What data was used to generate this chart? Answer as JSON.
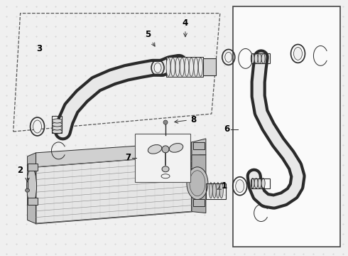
{
  "bg_color": "#f0f0f0",
  "panel_bg": "#f5f5f5",
  "lc": "#2a2a2a",
  "lc_light": "#888888",
  "white": "#ffffff",
  "gray1": "#e0e0e0",
  "gray2": "#c8c8c8",
  "gray3": "#b0b0b0",
  "dot_color": "#cccccc",
  "fig_w": 4.9,
  "fig_h": 3.6,
  "dpi": 100
}
